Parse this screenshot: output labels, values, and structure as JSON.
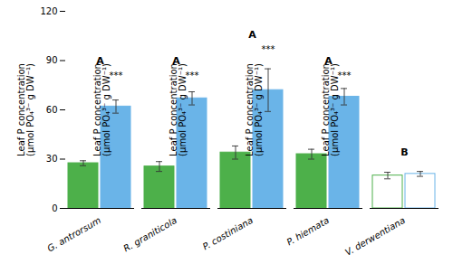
{
  "chart_data": {
    "type": "bar",
    "categories": [
      "G. antrorsum",
      "R. graniticola",
      "P. costiniana",
      "P. hiemata",
      "V. derwentiana"
    ],
    "series": [
      {
        "color": "#4db04a",
        "colors": [
          "#4db04a",
          "#4db04a",
          "#4db04a",
          "#4db04a",
          "white"
        ],
        "values": [
          27.5,
          25.5,
          34,
          33,
          20
        ],
        "errors": [
          1.5,
          3,
          4,
          3,
          2
        ]
      },
      {
        "color": "#6ab4e8",
        "colors": [
          "#6ab4e8",
          "#6ab4e8",
          "#6ab4e8",
          "#6ab4e8",
          "white"
        ],
        "values": [
          62,
          67,
          72,
          68,
          21
        ],
        "errors": [
          4,
          4,
          13,
          5,
          1.5
        ],
        "annotations": [
          {
            "text": "***",
            "x": "G. antrorsum",
            "y": 79
          },
          {
            "text": "***",
            "x": "R. graniticola",
            "y": 79
          },
          {
            "text": "***",
            "x": "P. costiniana",
            "y": 95
          },
          {
            "text": "***",
            "x": "P. hiemata",
            "y": 79
          }
        ]
      }
    ],
    "annotations": [
      {
        "text": "A",
        "x": "G. antrorsum",
        "y": 88
      },
      {
        "text": "A",
        "x": "R. graniticola",
        "y": 88
      },
      {
        "text": "A",
        "x": "P. costiniana",
        "y": 104
      },
      {
        "text": "A",
        "x": "P. hiemata",
        "y": 88
      },
      {
        "text": "B",
        "x": "V. derwentiana",
        "y": 32
      }
    ],
    "ylabel": "Leaf P concentration\n(μmol PO₄³⁻ g DW⁻¹)",
    "ylim": [
      0,
      120
    ],
    "yticks": [
      0,
      30,
      60,
      90,
      120
    ],
    "grid": false
  }
}
